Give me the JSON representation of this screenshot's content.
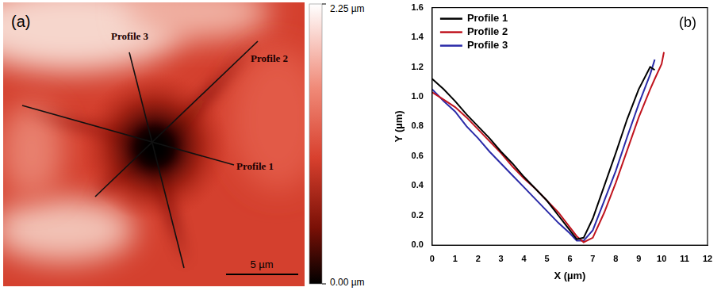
{
  "image_panel": {
    "label": "(a)",
    "profiles": [
      "Profile 1",
      "Profile 2",
      "Profile 3"
    ],
    "scale_bar": "5 µm",
    "colorbar": {
      "range": [
        0,
        2.25
      ],
      "ticks": [
        {
          "value": 0,
          "label": "0.00 µm"
        },
        {
          "value": 2.25,
          "label": "2.25 µm"
        }
      ]
    }
  },
  "chart_data": {
    "type": "line",
    "annotation": "(b)",
    "x_label": "X (µm)",
    "y_label": "Y (µm)",
    "x": [
      0,
      0.5,
      1,
      1.5,
      2,
      2.5,
      3,
      3.5,
      4,
      4.5,
      5,
      5.5,
      6,
      6.3,
      6.6,
      7,
      7.5,
      8,
      8.5,
      9,
      9.5,
      9.7,
      10,
      10.1
    ],
    "series": [
      {
        "name": "Profile 1",
        "color": "#000000",
        "values": [
          1.12,
          1.05,
          0.97,
          0.88,
          0.8,
          0.72,
          0.63,
          0.55,
          0.46,
          0.38,
          0.3,
          0.2,
          0.1,
          0.04,
          0.05,
          0.18,
          0.4,
          0.62,
          0.85,
          1.05,
          1.2,
          1.18,
          null,
          null
        ]
      },
      {
        "name": "Profile 2",
        "color": "#c0141e",
        "values": [
          1.03,
          0.98,
          0.93,
          0.86,
          0.78,
          0.7,
          0.62,
          0.53,
          0.45,
          0.38,
          0.3,
          0.22,
          0.12,
          0.06,
          0.02,
          0.05,
          0.22,
          0.42,
          0.64,
          0.86,
          1.05,
          1.12,
          1.22,
          1.3
        ]
      },
      {
        "name": "Profile 3",
        "color": "#2a2aa8",
        "values": [
          1.05,
          0.97,
          0.9,
          0.8,
          0.72,
          0.63,
          0.55,
          0.47,
          0.39,
          0.31,
          0.23,
          0.15,
          0.08,
          0.03,
          0.03,
          0.1,
          0.3,
          0.5,
          0.73,
          0.95,
          1.15,
          1.25,
          null,
          null
        ]
      }
    ],
    "xlim": [
      0,
      12
    ],
    "xticks": [
      0,
      1,
      2,
      3,
      4,
      5,
      6,
      7,
      8,
      9,
      10,
      11,
      12
    ],
    "ylim": [
      0,
      1.6
    ],
    "yticks": [
      {
        "value": 0,
        "label": "0.0"
      },
      0.2,
      0.4,
      0.6,
      0.8,
      {
        "value": 1,
        "label": "1.0"
      },
      1.2,
      1.4,
      1.6
    ],
    "legend": "upper left",
    "grid": false
  }
}
